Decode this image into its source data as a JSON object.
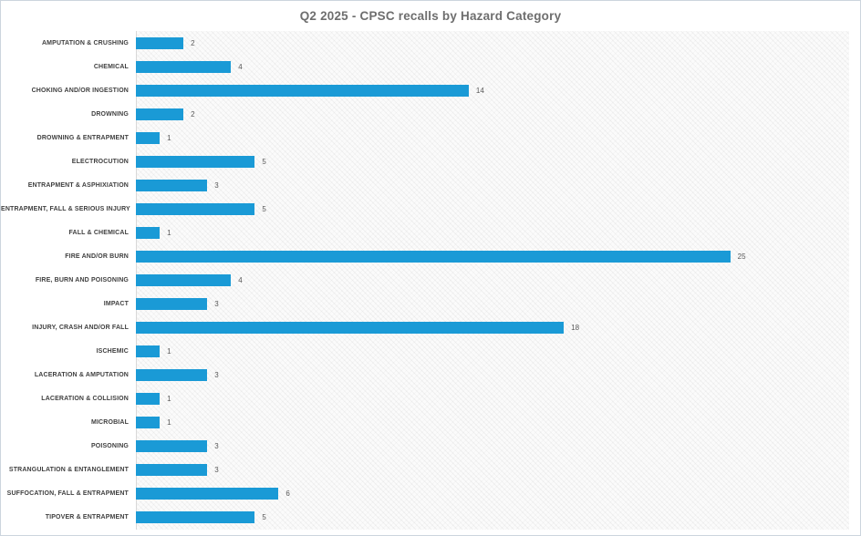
{
  "window": {
    "background": "#ffffff",
    "border_color": "#ccd5de"
  },
  "chart_data": {
    "type": "bar",
    "orientation": "horizontal",
    "title": "Q2 2025 - CPSC recalls by Hazard Category",
    "xlabel": "",
    "ylabel": "",
    "categories": [
      "AMPUTATION & CRUSHING",
      "CHEMICAL",
      "CHOKING AND/OR INGESTION",
      "DROWNING",
      "DROWNING & ENTRAPMENT",
      "ELECTROCUTION",
      "ENTRAPMENT & ASPHIXIATION",
      "ENTRAPMENT, FALL & SERIOUS INJURY",
      "FALL & CHEMICAL",
      "FIRE AND/OR BURN",
      "FIRE, BURN AND POISONING",
      "IMPACT",
      "INJURY, CRASH AND/OR FALL",
      "ISCHEMIC",
      "LACERATION & AMPUTATION",
      "LACERATION & COLLISION",
      "MICROBIAL",
      "POISONING",
      "STRANGULATION & ENTANGLEMENT",
      "SUFFOCATION, FALL & ENTRAPMENT",
      "TIPOVER & ENTRAPMENT"
    ],
    "values": [
      2,
      4,
      14,
      2,
      1,
      5,
      3,
      5,
      1,
      25,
      4,
      3,
      18,
      1,
      3,
      1,
      1,
      3,
      3,
      6,
      5
    ],
    "xlim": [
      0,
      30
    ],
    "grid": false,
    "legend": "none",
    "data_labels": true,
    "colors": {
      "bar": "#1a9ad6",
      "title": "#6e6e6e",
      "category_label": "#3f3f3f",
      "value_label": "#595959",
      "axis_line": "#d8d8d8",
      "plot_background": "#fbfbfb"
    }
  }
}
